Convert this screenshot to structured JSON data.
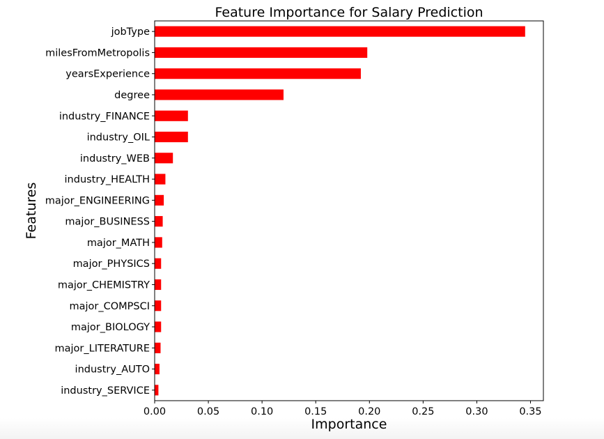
{
  "chart_data": {
    "type": "bar",
    "orientation": "horizontal",
    "title": "Feature Importance for Salary Prediction",
    "xlabel": "Importance",
    "ylabel": "Features",
    "xlim": [
      0.0,
      0.362
    ],
    "xticks": [
      0.0,
      0.05,
      0.1,
      0.15,
      0.2,
      0.25,
      0.3,
      0.35
    ],
    "xtick_labels": [
      "0.00",
      "0.05",
      "0.10",
      "0.15",
      "0.20",
      "0.25",
      "0.30",
      "0.35"
    ],
    "grid": false,
    "bar_color": "#ff0000",
    "categories": [
      "jobType",
      "milesFromMetropolis",
      "yearsExperience",
      "degree",
      "industry_FINANCE",
      "industry_OIL",
      "industry_WEB",
      "industry_HEALTH",
      "major_ENGINEERING",
      "major_BUSINESS",
      "major_MATH",
      "major_PHYSICS",
      "major_CHEMISTRY",
      "major_COMPSCI",
      "major_BIOLOGY",
      "major_LITERATURE",
      "industry_AUTO",
      "industry_SERVICE"
    ],
    "values": [
      0.345,
      0.198,
      0.192,
      0.12,
      0.031,
      0.031,
      0.017,
      0.01,
      0.0085,
      0.0075,
      0.007,
      0.006,
      0.006,
      0.006,
      0.006,
      0.0055,
      0.0045,
      0.0035
    ]
  }
}
